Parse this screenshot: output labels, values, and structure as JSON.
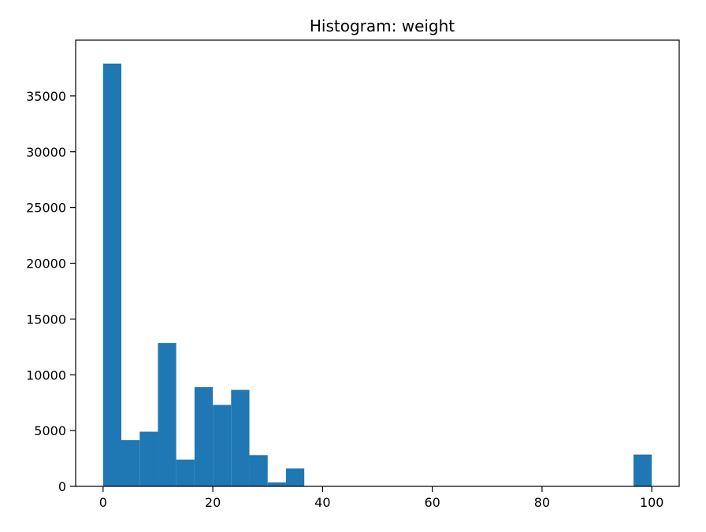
{
  "chart_data": {
    "type": "bar",
    "title": "Histogram: weight",
    "xlabel": "",
    "ylabel": "",
    "xlim": [
      -5,
      105
    ],
    "ylim": [
      0,
      40000
    ],
    "grid": false,
    "bar_color": "#1f77b4",
    "bin_width": 3.33,
    "bins": [
      {
        "x0": 0.0,
        "x1": 3.33,
        "count": 37900
      },
      {
        "x0": 3.33,
        "x1": 6.67,
        "count": 4150
      },
      {
        "x0": 6.67,
        "x1": 10.0,
        "count": 4900
      },
      {
        "x0": 10.0,
        "x1": 13.33,
        "count": 12850
      },
      {
        "x0": 13.33,
        "x1": 16.67,
        "count": 2400
      },
      {
        "x0": 16.67,
        "x1": 20.0,
        "count": 8900
      },
      {
        "x0": 20.0,
        "x1": 23.33,
        "count": 7300
      },
      {
        "x0": 23.33,
        "x1": 26.67,
        "count": 8650
      },
      {
        "x0": 26.67,
        "x1": 30.0,
        "count": 2800
      },
      {
        "x0": 30.0,
        "x1": 33.33,
        "count": 350
      },
      {
        "x0": 33.33,
        "x1": 36.67,
        "count": 1600
      },
      {
        "x0": 96.67,
        "x1": 100.0,
        "count": 2850
      }
    ],
    "x_ticks": [
      {
        "value": 0,
        "label": "0"
      },
      {
        "value": 20,
        "label": "20"
      },
      {
        "value": 40,
        "label": "40"
      },
      {
        "value": 60,
        "label": "60"
      },
      {
        "value": 80,
        "label": "80"
      },
      {
        "value": 100,
        "label": "100"
      }
    ],
    "y_ticks": [
      {
        "value": 0,
        "label": "0"
      },
      {
        "value": 5000,
        "label": "5000"
      },
      {
        "value": 10000,
        "label": "10000"
      },
      {
        "value": 15000,
        "label": "15000"
      },
      {
        "value": 20000,
        "label": "20000"
      },
      {
        "value": 25000,
        "label": "25000"
      },
      {
        "value": 30000,
        "label": "30000"
      },
      {
        "value": 35000,
        "label": "35000"
      }
    ]
  }
}
